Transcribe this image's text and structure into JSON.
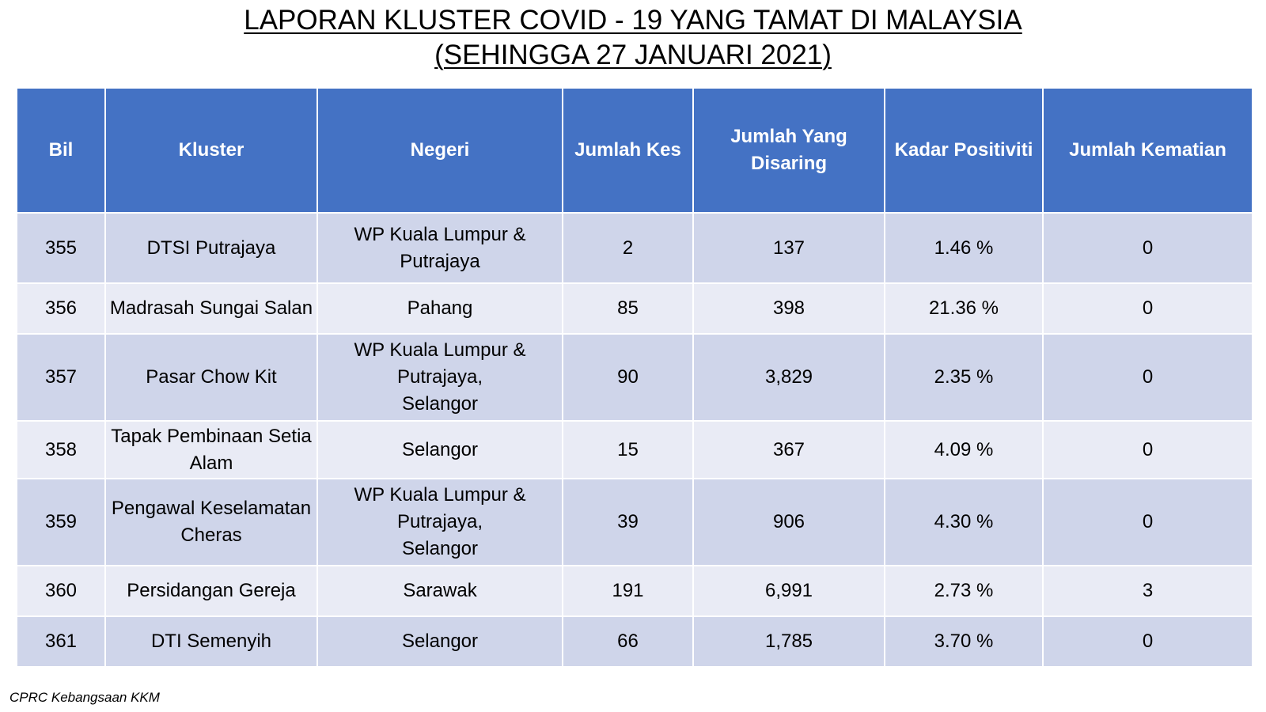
{
  "title": {
    "line1": "LAPORAN KLUSTER COVID - 19 YANG TAMAT DI MALAYSIA",
    "line2": "(SEHINGGA 27 JANUARI 2021)"
  },
  "table": {
    "headers": {
      "bil": "Bil",
      "kluster": "Kluster",
      "negeri": "Negeri",
      "jumlah_kes": "Jumlah Kes",
      "jumlah_disaring_1": "Jumlah Yang",
      "jumlah_disaring_2": "Disaring",
      "kadar_positiviti": "Kadar Positiviti",
      "jumlah_kematian": "Jumlah Kematian"
    },
    "rows": [
      {
        "bil": "355",
        "kluster": [
          "DTSI Putrajaya"
        ],
        "negeri": [
          "WP Kuala Lumpur &",
          "Putrajaya"
        ],
        "kes": "2",
        "disaring": "137",
        "positiviti": "1.46 %",
        "kematian": "0"
      },
      {
        "bil": "356",
        "kluster": [
          "Madrasah Sungai Salan"
        ],
        "negeri": [
          "Pahang"
        ],
        "kes": "85",
        "disaring": "398",
        "positiviti": "21.36 %",
        "kematian": "0"
      },
      {
        "bil": "357",
        "kluster": [
          "Pasar Chow Kit"
        ],
        "negeri": [
          "WP Kuala Lumpur &",
          "Putrajaya,",
          "Selangor"
        ],
        "kes": "90",
        "disaring": "3,829",
        "positiviti": "2.35 %",
        "kematian": "0"
      },
      {
        "bil": "358",
        "kluster": [
          "Tapak Pembinaan Setia",
          "Alam"
        ],
        "negeri": [
          "Selangor"
        ],
        "kes": "15",
        "disaring": "367",
        "positiviti": "4.09 %",
        "kematian": "0"
      },
      {
        "bil": "359",
        "kluster": [
          "Pengawal Keselamatan",
          "Cheras"
        ],
        "negeri": [
          "WP Kuala Lumpur &",
          "Putrajaya,",
          "Selangor"
        ],
        "kes": "39",
        "disaring": "906",
        "positiviti": "4.30 %",
        "kematian": "0"
      },
      {
        "bil": "360",
        "kluster": [
          "Persidangan Gereja"
        ],
        "negeri": [
          "Sarawak"
        ],
        "kes": "191",
        "disaring": "6,991",
        "positiviti": "2.73 %",
        "kematian": "3"
      },
      {
        "bil": "361",
        "kluster": [
          "DTI Semenyih"
        ],
        "negeri": [
          "Selangor"
        ],
        "kes": "66",
        "disaring": "1,785",
        "positiviti": "3.70 %",
        "kematian": "0"
      }
    ]
  },
  "footer": "CPRC Kebangsaan KKM",
  "colors": {
    "header_bg": "#4472c4",
    "row_odd_bg": "#cfd5ea",
    "row_even_bg": "#e9ebf5"
  }
}
